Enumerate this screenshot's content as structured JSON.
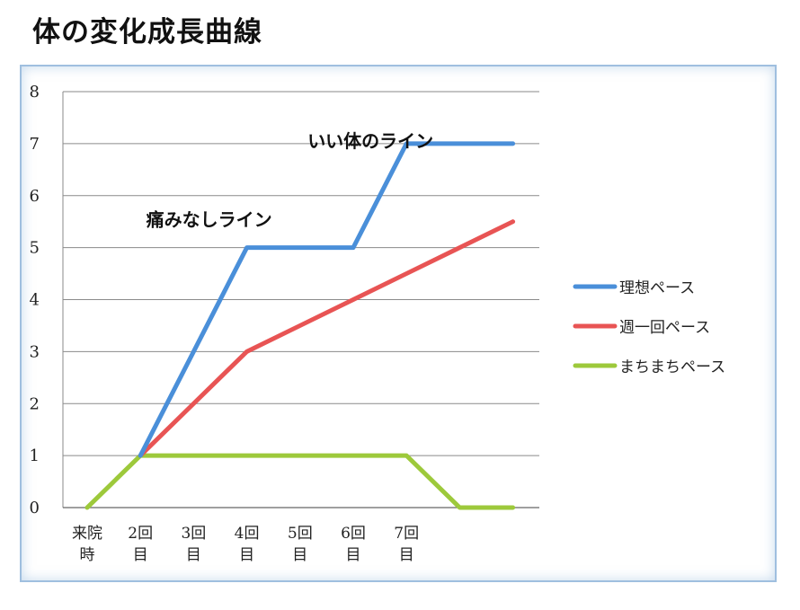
{
  "page": {
    "title": "体の変化成長曲線"
  },
  "chart_data": {
    "type": "line",
    "title": "",
    "xlabel": "",
    "ylabel": "",
    "ylim": [
      0,
      8
    ],
    "yticks": [
      0,
      1,
      2,
      3,
      4,
      5,
      6,
      7,
      8
    ],
    "grid": true,
    "legend_position": "right",
    "categories": [
      [
        "来院",
        "時"
      ],
      [
        "2回",
        "目"
      ],
      [
        "3回",
        "目"
      ],
      [
        "4回",
        "目"
      ],
      [
        "5回",
        "目"
      ],
      [
        "6回",
        "目"
      ],
      [
        "7回",
        "目"
      ],
      [
        "",
        ""
      ],
      [
        "",
        ""
      ]
    ],
    "series": [
      {
        "name": "理想ペース",
        "color": "#4a8fd9",
        "values": [
          null,
          1,
          3,
          5,
          5,
          5,
          7,
          7,
          7
        ]
      },
      {
        "name": "週一回ペース",
        "color": "#e85454",
        "values": [
          null,
          1,
          2,
          3,
          3.5,
          4,
          4.5,
          5,
          5.5
        ]
      },
      {
        "name": "まちまちペース",
        "color": "#9dc93b",
        "values": [
          0,
          1,
          1,
          1,
          1,
          1,
          1,
          0,
          0
        ]
      }
    ],
    "annotations": [
      {
        "text": "痛みなしライン",
        "x": 3,
        "y": 5
      },
      {
        "text": "いい体のライン",
        "x": 6,
        "y": 7
      }
    ]
  }
}
